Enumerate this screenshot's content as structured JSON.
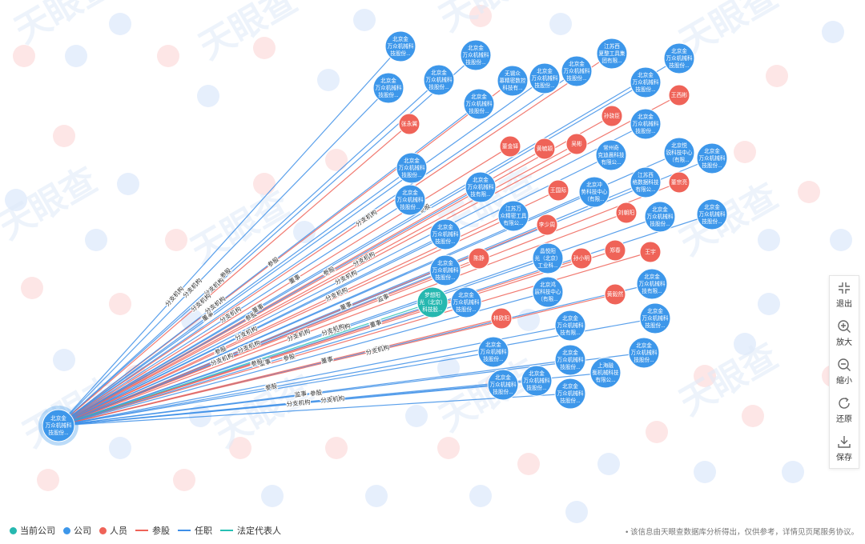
{
  "toolbar": {
    "exit": "退出",
    "zoom_in": "放大",
    "zoom_out": "缩小",
    "restore": "还原",
    "save": "保存"
  },
  "legend": {
    "current_company": "当前公司",
    "company": "公司",
    "person": "人员",
    "shareholding": "参股",
    "employment": "任职",
    "legal_rep": "法定代表人"
  },
  "footnote": "• 该信息由天眼查数据库分析得出，仅供参考，详情见页尾服务协议。",
  "watermark": "天眼查",
  "colors": {
    "current": "#26b8b0",
    "company": "#3d97ea",
    "person": "#ef6358",
    "share_line": "#ef6358",
    "job_line": "#3d8fe8",
    "legal_line": "#26c0b4"
  },
  "root": {
    "name": "北京金\n万众机械科\n技股份..."
  },
  "nodes": [
    {
      "type": "company",
      "name": "北京金\n万众机械科\n技股份..."
    },
    {
      "type": "company",
      "name": "北京金\n万众机械科\n技股份..."
    },
    {
      "type": "company",
      "name": "北京金\n万众机械科\n技股份..."
    },
    {
      "type": "company",
      "name": "北京金\n万众机械科\n技股份..."
    },
    {
      "type": "company",
      "name": "无锡众\n慕精密数控\n科技有..."
    },
    {
      "type": "company",
      "name": "北京金\n万众机械科\n技股份..."
    },
    {
      "type": "company",
      "name": "北京金\n万众机械科\n技股份..."
    },
    {
      "type": "company",
      "name": "江苏西\n夏整工具集\n团有限..."
    },
    {
      "type": "company",
      "name": "北京金\n万众机械科\n技股份..."
    },
    {
      "type": "company",
      "name": "北京金\n万众机械科\n技股份..."
    },
    {
      "type": "company",
      "name": "北京金\n万众机械科\n技股份..."
    },
    {
      "type": "person",
      "name": "张永翼"
    },
    {
      "type": "person",
      "name": "王西彬"
    },
    {
      "type": "person",
      "name": "孙骁臣"
    },
    {
      "type": "company",
      "name": "北京金\n万众机械科\n技股份..."
    },
    {
      "type": "person",
      "name": "董金铎"
    },
    {
      "type": "person",
      "name": "黄毓颖"
    },
    {
      "type": "person",
      "name": "吴彬"
    },
    {
      "type": "company",
      "name": "常州奇\n克迪晨科技\n有限公..."
    },
    {
      "type": "company",
      "name": "北京悦\n锐科技中心\n（有限..."
    },
    {
      "type": "company",
      "name": "北京金\n万众机械科\n技股份..."
    },
    {
      "type": "company",
      "name": "北京金\n万众机械科\n技股份..."
    },
    {
      "type": "company",
      "name": "北京金\n万众机械科\n技有限..."
    },
    {
      "type": "company",
      "name": "江苏西\n格数据科技\n有限公..."
    },
    {
      "type": "person",
      "name": "董宗亮"
    },
    {
      "type": "person",
      "name": "王国际"
    },
    {
      "type": "company",
      "name": "北京冲\n势科技中心\n（有限..."
    },
    {
      "type": "company",
      "name": "北京金\n万众机械科\n技股份..."
    },
    {
      "type": "company",
      "name": "江苏万\n众精密工具\n有限公..."
    },
    {
      "type": "person",
      "name": "李少周"
    },
    {
      "type": "person",
      "name": "刘朝阳"
    },
    {
      "type": "company",
      "name": "北京金\n万众机械科\n技股份..."
    },
    {
      "type": "company",
      "name": "北京金\n万众机械科\n技股份..."
    },
    {
      "type": "company",
      "name": "北京金\n万众机械科\n技股份..."
    },
    {
      "type": "person",
      "name": "陈静"
    },
    {
      "type": "company",
      "name": "晶悦阳\n光（北京）\n工业科..."
    },
    {
      "type": "person",
      "name": "孙小明"
    },
    {
      "type": "person",
      "name": "郑春"
    },
    {
      "type": "person",
      "name": "王宇"
    },
    {
      "type": "company",
      "name": "北京金\n万众机械科\n技股份..."
    },
    {
      "type": "company",
      "name": "北京鸿\n宸科技中心\n（有限..."
    },
    {
      "type": "current",
      "name": "梦想阳\n光（北京）\n科技股..."
    },
    {
      "type": "company",
      "name": "北京金\n万众机械科\n技股份..."
    },
    {
      "type": "company",
      "name": "北京金\n万众机械科\n技有限..."
    },
    {
      "type": "person",
      "name": "黄毅然"
    },
    {
      "type": "person",
      "name": "林欧阳"
    },
    {
      "type": "company",
      "name": "北京金\n万众机械科\n技股份..."
    },
    {
      "type": "company",
      "name": "北京金\n万众机械科\n技有限..."
    },
    {
      "type": "company",
      "name": "北京金\n万众机械科\n技股份..."
    },
    {
      "type": "company",
      "name": "北京金\n万众机械科\n技股份..."
    },
    {
      "type": "company",
      "name": "北京金\n万众机械科\n技股份..."
    },
    {
      "type": "company",
      "name": "上海融\n衡机械科技\n有限公..."
    },
    {
      "type": "company",
      "name": "北京金\n万众机械科\n技股份..."
    },
    {
      "type": "company",
      "name": "北京金\n万众机械科\n技股份..."
    },
    {
      "type": "company",
      "name": "北京金\n万众机械科\n技股份..."
    }
  ],
  "edge_labels": [
    "分支机构",
    "分支机构",
    "分支机构",
    "董事",
    "参股",
    "分支机构",
    "董事",
    "参股",
    "分支机构",
    "参股",
    "董事",
    "参股",
    "分支机构",
    "董事",
    "参股",
    "监事",
    "分支机构",
    "董事",
    "参股",
    "董事",
    "分支机构",
    "参股",
    "分支机构",
    "董事",
    "参股",
    "分支机构",
    "分支机构",
    "监事",
    "分支机构",
    "参股",
    "董事",
    "分支机构",
    "参股",
    "分支机构",
    "分支机构",
    "分支机构",
    "分支机构",
    "分支机构",
    "参股",
    "分支机构"
  ]
}
